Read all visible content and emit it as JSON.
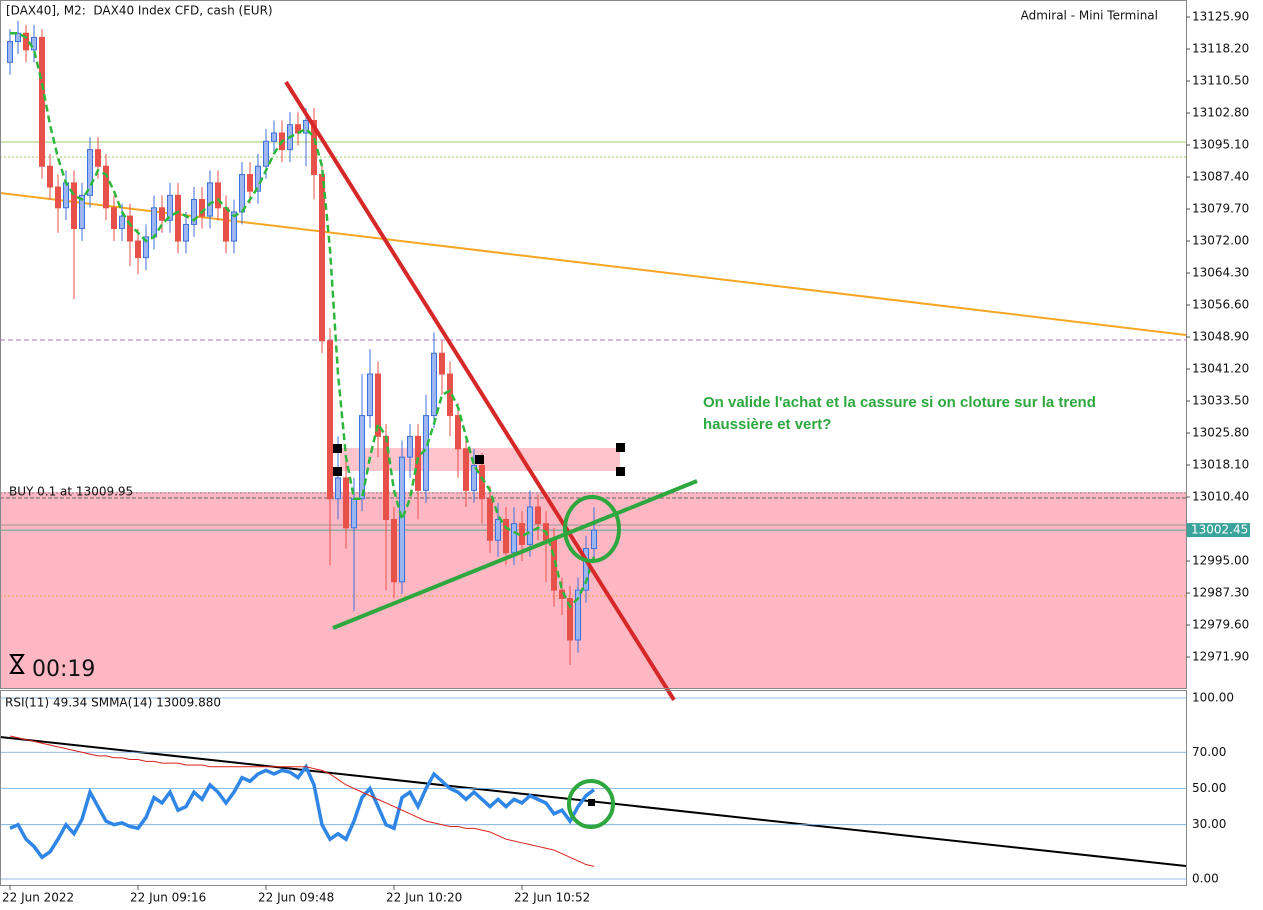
{
  "chart_data": [
    {
      "type": "candlestick",
      "title": "[DAX40], M2:  DAX40 Index CFD, cash (EUR)",
      "source_label": "Admiral - Mini Terminal",
      "order_label": "BUY 0.1 at 13009.95",
      "timer": "00:19",
      "annotation": [
        "On valide l'achat et la cassure si on cloture sur la trend",
        "haussière et vert?"
      ],
      "up_color": "#3f6fd8",
      "down_color": "#e8514a",
      "categories": [
        "22 Jun 2022",
        null,
        null,
        null,
        null,
        null,
        null,
        null,
        null,
        null,
        null,
        null,
        null,
        null,
        null,
        null,
        "22 Jun 09:16",
        null,
        null,
        null,
        null,
        null,
        null,
        null,
        null,
        null,
        null,
        null,
        null,
        null,
        null,
        null,
        "22 Jun 09:48",
        null,
        null,
        null,
        null,
        null,
        null,
        null,
        null,
        null,
        null,
        null,
        null,
        null,
        null,
        null,
        "22 Jun 10:20",
        null,
        null,
        null,
        null,
        null,
        null,
        null,
        null,
        null,
        null,
        null,
        null,
        null,
        null,
        null,
        "22 Jun 10:52",
        null,
        null,
        null,
        null,
        null,
        null,
        null,
        null,
        null
      ],
      "open": [
        13115,
        13120,
        13122,
        13118,
        13121,
        13090,
        13085,
        13080,
        13086,
        13075,
        13083,
        13094,
        13090,
        13080,
        13075,
        13078,
        13072,
        13068,
        13073,
        13080,
        13077,
        13083,
        13072,
        13076,
        13082,
        13078,
        13086,
        13080,
        13072,
        13079,
        13088,
        13084,
        13090,
        13096,
        13098,
        13094,
        13100,
        13098,
        13101,
        13088,
        13048,
        13010,
        13015,
        13003,
        13010,
        13030,
        13040,
        13025,
        13005,
        12990,
        13020,
        13025,
        13012,
        13030,
        13045,
        13040,
        13030,
        13022,
        13012,
        13018,
        13010,
        13000,
        13005,
        12997,
        13004,
        12999,
        13008,
        13004,
        13000,
        12988,
        12986,
        12976,
        12988,
        12998
      ],
      "high": [
        13123,
        13125,
        13124,
        13124,
        13123,
        13093,
        13088,
        13089,
        13089,
        13086,
        13097,
        13097,
        13093,
        13083,
        13081,
        13081,
        13075,
        13076,
        13083,
        13083,
        13086,
        13086,
        13079,
        13085,
        13085,
        13089,
        13089,
        13083,
        13082,
        13091,
        13091,
        13093,
        13099,
        13101,
        13101,
        13103,
        13103,
        13104,
        13104,
        13091,
        13051,
        13025,
        13020,
        13015,
        13040,
        13046,
        13043,
        13028,
        13008,
        13024,
        13028,
        13028,
        13035,
        13050,
        13048,
        13043,
        13033,
        13025,
        13022,
        13021,
        13013,
        13009,
        13008,
        13008,
        13007,
        13012,
        13011,
        13007,
        13003,
        12991,
        12989,
        12991,
        13001,
        13008
      ],
      "low": [
        13112,
        13117,
        13115,
        13115,
        13087,
        13082,
        13074,
        13077,
        13058,
        13072,
        13080,
        13087,
        13077,
        13072,
        13072,
        13066,
        13064,
        13065,
        13070,
        13074,
        13074,
        13069,
        13069,
        13073,
        13075,
        13075,
        13077,
        13069,
        13069,
        13076,
        13081,
        13081,
        13087,
        13093,
        13091,
        13091,
        13095,
        13090,
        13082,
        13045,
        12994,
        13005,
        12998,
        12983,
        13007,
        13027,
        13020,
        12988,
        12986,
        12987,
        13015,
        13005,
        13009,
        13027,
        13035,
        13025,
        13015,
        13008,
        13009,
        13004,
        12997,
        12996,
        12994,
        12994,
        12995,
        12996,
        13000,
        12990,
        12984,
        12982,
        12970,
        12973,
        12985,
        12995
      ],
      "close": [
        13120,
        13122,
        13118,
        13121,
        13090,
        13085,
        13080,
        13086,
        13075,
        13083,
        13094,
        13090,
        13080,
        13075,
        13078,
        13072,
        13068,
        13073,
        13080,
        13077,
        13083,
        13072,
        13076,
        13082,
        13078,
        13086,
        13080,
        13072,
        13079,
        13088,
        13084,
        13090,
        13096,
        13098,
        13094,
        13100,
        13098,
        13101,
        13088,
        13048,
        13010,
        13015,
        13003,
        13010,
        13030,
        13040,
        13025,
        13005,
        12990,
        13020,
        13025,
        13012,
        13030,
        13045,
        13040,
        13030,
        13022,
        13012,
        13018,
        13010,
        13000,
        13005,
        12997,
        13004,
        12999,
        13008,
        13004,
        13000,
        12988,
        12986,
        12976,
        12988,
        12998,
        13002.45
      ],
      "ma": {
        "color": "#2db83d",
        "values": [
          13122,
          13122,
          13121,
          13118,
          13110,
          13100,
          13092,
          13086,
          13083,
          13082,
          13085,
          13089,
          13088,
          13084,
          13079,
          13076,
          13074,
          13072,
          13073,
          13076,
          13078,
          13079,
          13078,
          13077,
          13079,
          13081,
          13082,
          13080,
          13078,
          13079,
          13082,
          13085,
          13089,
          13093,
          13096,
          13097,
          13098,
          13099,
          13097,
          13090,
          13070,
          13040,
          13020,
          13010,
          13010,
          13020,
          13028,
          13025,
          13012,
          13005,
          13010,
          13020,
          13022,
          13028,
          13035,
          13036,
          13032,
          13025,
          13018,
          13015,
          13012,
          13006,
          13003,
          13002,
          13001,
          13002,
          13003,
          13002,
          12996,
          12988,
          12984,
          12986,
          12990,
          12996
        ]
      },
      "ylim": [
        12964.45,
        13130.0
      ],
      "yticks": [
        {
          "value": 13125.9,
          "label": "13125.90"
        },
        {
          "value": 13118.2,
          "label": "13118.20"
        },
        {
          "value": 13110.5,
          "label": "13110.50"
        },
        {
          "value": 13102.8,
          "label": "13102.80"
        },
        {
          "value": 13095.1,
          "label": "13095.10"
        },
        {
          "value": 13087.4,
          "label": "13087.40"
        },
        {
          "value": 13079.7,
          "label": "13079.70"
        },
        {
          "value": 13072,
          "label": "13072.00"
        },
        {
          "value": 13064.3,
          "label": "13064.30"
        },
        {
          "value": 13056.6,
          "label": "13056.60"
        },
        {
          "value": 13048.9,
          "label": "13048.90"
        },
        {
          "value": 13041.2,
          "label": "13041.20"
        },
        {
          "value": 13033.5,
          "label": "13033.50"
        },
        {
          "value": 13025.8,
          "label": "13025.80"
        },
        {
          "value": 13018.1,
          "label": "13018.10"
        },
        {
          "value": 13010.4,
          "label": "13010.40"
        },
        {
          "value": 12995,
          "label": "12995.00"
        },
        {
          "value": 12987.3,
          "label": "12987.30"
        },
        {
          "value": 12979.6,
          "label": "12979.60"
        },
        {
          "value": 12971.9,
          "label": "12971.90"
        }
      ]
    },
    {
      "type": "line",
      "title": "RSI(11) 49.34 SMMA(14) 13009.880",
      "series": [
        {
          "color": "#2f86e6",
          "values": [
            28,
            30,
            22,
            18,
            12,
            15,
            22,
            30,
            25,
            33,
            48,
            40,
            32,
            30,
            31,
            29,
            28,
            34,
            45,
            42,
            48,
            38,
            40,
            48,
            44,
            52,
            48,
            42,
            48,
            56,
            54,
            58,
            60,
            58,
            60,
            59,
            56,
            62,
            52,
            30,
            22,
            25,
            22,
            32,
            45,
            50,
            40,
            30,
            28,
            45,
            48,
            40,
            50,
            58,
            54,
            50,
            48,
            44,
            48,
            44,
            40,
            44,
            40,
            44,
            42,
            46,
            44,
            42,
            36,
            38,
            32,
            40,
            46,
            49.34
          ]
        },
        {
          "color": "#d9201c",
          "values": [
            79,
            78,
            77,
            76,
            75,
            74,
            73,
            72,
            71,
            70,
            69,
            68,
            68,
            67,
            67,
            66,
            66,
            65,
            65,
            64,
            64,
            64,
            63,
            63,
            63,
            62,
            62,
            62,
            62,
            62,
            62,
            62,
            62,
            62,
            62,
            62,
            62,
            62,
            61,
            60,
            58,
            55,
            52,
            50,
            48,
            46,
            44,
            42,
            40,
            38,
            36,
            34,
            32,
            31,
            30,
            29,
            29,
            28,
            28,
            27,
            26,
            24,
            22,
            21,
            20,
            19,
            18,
            17,
            16,
            14,
            12,
            10,
            8,
            7
          ]
        }
      ],
      "ylim": [
        -3.3,
        104.4
      ],
      "yticks": [
        {
          "value": 100,
          "label": "100.00"
        },
        {
          "value": 70,
          "label": "70.00"
        },
        {
          "value": 50,
          "label": "50.00"
        },
        {
          "value": 30,
          "label": "30.00"
        },
        {
          "value": 0,
          "label": "0.00"
        }
      ]
    }
  ]
}
